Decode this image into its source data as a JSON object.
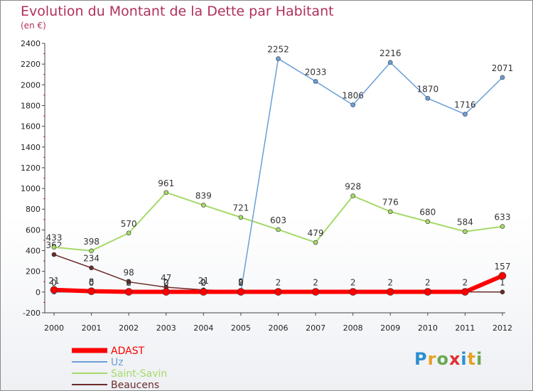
{
  "title": "Evolution du Montant de la Dette par Habitant",
  "unit": "(en €)",
  "brand": {
    "letters": [
      "P",
      "r",
      "o",
      "x",
      "i",
      "t",
      "i"
    ],
    "colors": [
      "#2a8fd0",
      "#e8a020",
      "#6aa84f",
      "#e03030",
      "#2a8fd0",
      "#e8a020",
      "#6aa84f"
    ]
  },
  "chart_data": {
    "type": "line",
    "title": "Evolution du Montant de la Dette par Habitant",
    "subtitle": "(en €)",
    "x": [
      2000,
      2001,
      2002,
      2003,
      2004,
      2005,
      2006,
      2007,
      2008,
      2009,
      2010,
      2011,
      2012
    ],
    "ylim": [
      -200,
      2400
    ],
    "yticks": [
      -200,
      0,
      200,
      400,
      600,
      800,
      1000,
      1200,
      1400,
      1600,
      1800,
      2000,
      2200,
      2400
    ],
    "grid": false,
    "legend_position": "bottom-left",
    "series": [
      {
        "name": "Beaucens",
        "color": "#6b2a2a",
        "width": 1.5,
        "values": [
          362,
          234,
          98,
          47,
          21,
          9,
          null,
          null,
          null,
          null,
          null,
          null,
          1
        ],
        "labels": [
          "362",
          "234",
          "98",
          "47",
          "21",
          "9",
          "",
          "",
          "",
          "",
          "",
          "",
          "1"
        ]
      },
      {
        "name": "Saint-Savin",
        "color": "#a6d96a",
        "width": 2,
        "values": [
          433,
          398,
          570,
          961,
          839,
          721,
          603,
          479,
          928,
          776,
          680,
          584,
          633
        ],
        "labels": [
          "433",
          "398",
          "570",
          "961",
          "839",
          "721",
          "603",
          "479",
          "928",
          "776",
          "680",
          "584",
          "633"
        ]
      },
      {
        "name": "Uz",
        "color": "#6a9fd8",
        "width": 1.5,
        "values": [
          0,
          0,
          0,
          0,
          0,
          0,
          2252,
          2033,
          1806,
          2216,
          1870,
          1716,
          2071
        ],
        "labels": [
          "0",
          "0",
          "0",
          "0",
          "0",
          "0",
          "2252",
          "2033",
          "1806",
          "2216",
          "1870",
          "1716",
          "2071"
        ]
      },
      {
        "name": "ADAST",
        "color": "#ff0000",
        "width": 6,
        "values": [
          21,
          8,
          2,
          2,
          2,
          2,
          2,
          2,
          2,
          2,
          2,
          2,
          157
        ],
        "labels": [
          "21",
          "8",
          "2",
          "2",
          "2",
          "2",
          "2",
          "2",
          "2",
          "2",
          "2",
          "2",
          "157"
        ]
      }
    ],
    "legend": [
      "ADAST",
      "Uz",
      "Saint-Savin",
      "Beaucens"
    ]
  }
}
